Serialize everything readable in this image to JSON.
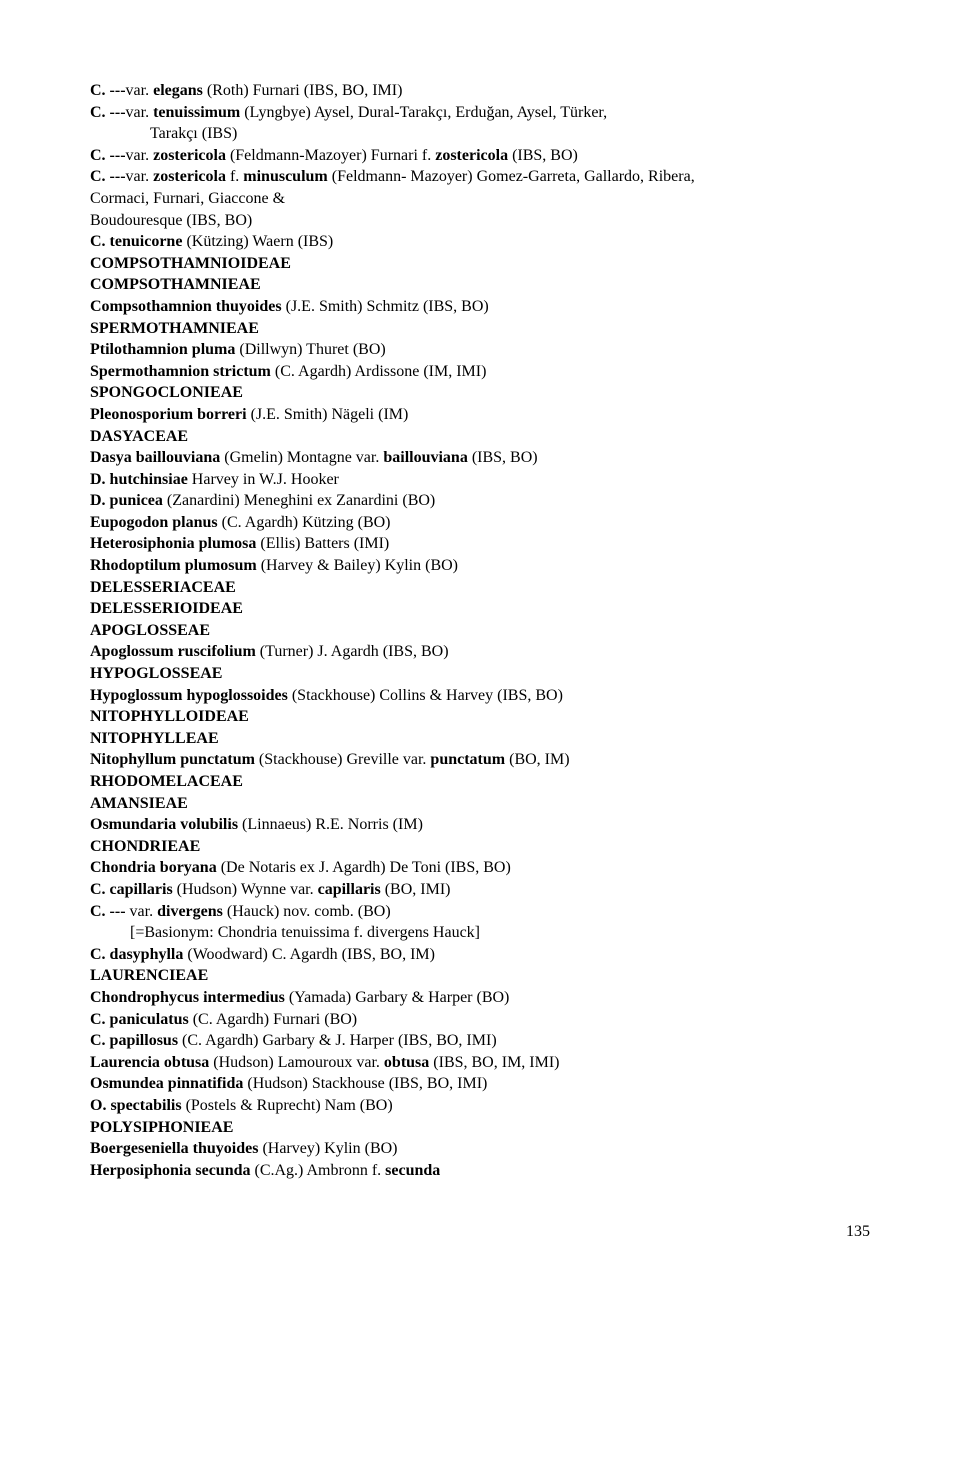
{
  "lines": [
    {
      "segments": [
        {
          "text": "C. ---",
          "bold": true
        },
        {
          "text": "var. ",
          "bold": false
        },
        {
          "text": "elegans ",
          "bold": true
        },
        {
          "text": "(Roth) Furnari (IBS, BO, IMI)",
          "bold": false
        }
      ],
      "indent": 0
    },
    {
      "segments": [
        {
          "text": "C. ---",
          "bold": true
        },
        {
          "text": "var. ",
          "bold": false
        },
        {
          "text": "tenuissimum ",
          "bold": true
        },
        {
          "text": "(Lyngbye) Aysel, Dural-Tarakçı, Erduğan, Aysel, Türker,",
          "bold": false
        }
      ],
      "indent": 0
    },
    {
      "segments": [
        {
          "text": "Tarakçı (IBS)",
          "bold": false
        }
      ],
      "indent": 1
    },
    {
      "segments": [
        {
          "text": "C. ---",
          "bold": true
        },
        {
          "text": "var. ",
          "bold": false
        },
        {
          "text": "zostericola ",
          "bold": true
        },
        {
          "text": "(Feldmann-Mazoyer) Furnari f. ",
          "bold": false
        },
        {
          "text": "zostericola ",
          "bold": true
        },
        {
          "text": "(IBS, BO)",
          "bold": false
        }
      ],
      "indent": 0
    },
    {
      "segments": [
        {
          "text": "C. ---",
          "bold": true
        },
        {
          "text": "var. ",
          "bold": false
        },
        {
          "text": "zostericola ",
          "bold": true
        },
        {
          "text": "f. ",
          "bold": false
        },
        {
          "text": "minusculum ",
          "bold": true
        },
        {
          "text": "(Feldmann- Mazoyer) Gomez-Garreta, Gallardo, Ribera,",
          "bold": false
        }
      ],
      "indent": 0
    },
    {
      "segments": [
        {
          "text": "Cormaci, Furnari, Giaccone &",
          "bold": false
        }
      ],
      "indent": 0
    },
    {
      "segments": [
        {
          "text": "Boudouresque (IBS, BO)",
          "bold": false
        }
      ],
      "indent": 0
    },
    {
      "segments": [
        {
          "text": "C. tenuicorne ",
          "bold": true
        },
        {
          "text": "(Kützing) Waern (IBS)",
          "bold": false
        }
      ],
      "indent": 0
    },
    {
      "segments": [
        {
          "text": "COMPSOTHAMNIOIDEAE",
          "bold": true
        }
      ],
      "indent": 0
    },
    {
      "segments": [
        {
          "text": "COMPSOTHAMNIEAE",
          "bold": true
        }
      ],
      "indent": 0
    },
    {
      "segments": [
        {
          "text": "Compsothamnion thuyoides ",
          "bold": true
        },
        {
          "text": "(J.E. Smith) Schmitz (IBS, BO)",
          "bold": false
        }
      ],
      "indent": 0
    },
    {
      "segments": [
        {
          "text": "SPERMOTHAMNIEAE",
          "bold": true
        }
      ],
      "indent": 0
    },
    {
      "segments": [
        {
          "text": "Ptilothamnion pluma ",
          "bold": true
        },
        {
          "text": "(Dillwyn) Thuret (BO)",
          "bold": false
        }
      ],
      "indent": 0
    },
    {
      "segments": [
        {
          "text": "Spermothamnion strictum ",
          "bold": true
        },
        {
          "text": "(C. Agardh) Ardissone (IM, IMI)",
          "bold": false
        }
      ],
      "indent": 0
    },
    {
      "segments": [
        {
          "text": "SPONGOCLONIEAE",
          "bold": true
        }
      ],
      "indent": 0
    },
    {
      "segments": [
        {
          "text": "Pleonosporium borreri ",
          "bold": true
        },
        {
          "text": "(J.E. Smith) Nägeli (IM)",
          "bold": false
        }
      ],
      "indent": 0
    },
    {
      "segments": [
        {
          "text": "DASYACEAE",
          "bold": true
        }
      ],
      "indent": 0
    },
    {
      "segments": [
        {
          "text": "Dasya baillouviana ",
          "bold": true
        },
        {
          "text": "(Gmelin) Montagne var. ",
          "bold": false
        },
        {
          "text": "baillouviana ",
          "bold": true
        },
        {
          "text": "(IBS, BO)",
          "bold": false
        }
      ],
      "indent": 0
    },
    {
      "segments": [
        {
          "text": "D. hutchinsiae ",
          "bold": true
        },
        {
          "text": " Harvey in W.J. Hooker",
          "bold": false
        }
      ],
      "indent": 0
    },
    {
      "segments": [
        {
          "text": "D. punicea ",
          "bold": true
        },
        {
          "text": "(Zanardini) Meneghini ex Zanardini (BO)",
          "bold": false
        }
      ],
      "indent": 0
    },
    {
      "segments": [
        {
          "text": "Eupogodon planus ",
          "bold": true
        },
        {
          "text": "(C. Agardh) Kützing (BO)",
          "bold": false
        }
      ],
      "indent": 0
    },
    {
      "segments": [
        {
          "text": "Heterosiphonia plumosa ",
          "bold": true
        },
        {
          "text": " (Ellis) Batters (IMI)",
          "bold": false
        }
      ],
      "indent": 0
    },
    {
      "segments": [
        {
          "text": "Rhodoptilum plumosum ",
          "bold": true
        },
        {
          "text": "(Harvey & Bailey) Kylin (BO)",
          "bold": false
        }
      ],
      "indent": 0
    },
    {
      "segments": [
        {
          "text": "DELESSERIACEAE",
          "bold": true
        }
      ],
      "indent": 0
    },
    {
      "segments": [
        {
          "text": "DELESSERIOIDEAE",
          "bold": true
        }
      ],
      "indent": 0
    },
    {
      "segments": [
        {
          "text": "APOGLOSSEAE",
          "bold": true
        }
      ],
      "indent": 0
    },
    {
      "segments": [
        {
          "text": "Apoglossum ruscifolium ",
          "bold": true
        },
        {
          "text": "(Turner) J. Agardh (IBS, BO)",
          "bold": false
        }
      ],
      "indent": 0
    },
    {
      "segments": [
        {
          "text": "HYPOGLOSSEAE",
          "bold": true
        }
      ],
      "indent": 0
    },
    {
      "segments": [
        {
          "text": "Hypoglossum hypoglossoides ",
          "bold": true
        },
        {
          "text": "(Stackhouse) Collins & Harvey (IBS, BO)",
          "bold": false
        }
      ],
      "indent": 0
    },
    {
      "segments": [
        {
          "text": "NITOPHYLLOIDEAE",
          "bold": true
        }
      ],
      "indent": 0
    },
    {
      "segments": [
        {
          "text": "NITOPHYLLEAE",
          "bold": true
        }
      ],
      "indent": 0
    },
    {
      "segments": [
        {
          "text": "Nitophyllum punctatum ",
          "bold": true
        },
        {
          "text": "(Stackhouse) Greville var. ",
          "bold": false
        },
        {
          "text": "punctatum ",
          "bold": true
        },
        {
          "text": "(BO, IM)",
          "bold": false
        }
      ],
      "indent": 0
    },
    {
      "segments": [
        {
          "text": "RHODOMELACEAE",
          "bold": true
        }
      ],
      "indent": 0
    },
    {
      "segments": [
        {
          "text": "AMANSIEAE",
          "bold": true
        }
      ],
      "indent": 0
    },
    {
      "segments": [
        {
          "text": "Osmundaria volubilis ",
          "bold": true
        },
        {
          "text": "(Linnaeus) R.E. Norris (IM)",
          "bold": false
        }
      ],
      "indent": 0
    },
    {
      "segments": [
        {
          "text": "CHONDRIEAE",
          "bold": true
        }
      ],
      "indent": 0
    },
    {
      "segments": [
        {
          "text": "Chondria boryana ",
          "bold": true
        },
        {
          "text": " (De Notaris ex J. Agardh) De Toni (IBS, BO)",
          "bold": false
        }
      ],
      "indent": 0
    },
    {
      "segments": [
        {
          "text": "C. capillaris ",
          "bold": true
        },
        {
          "text": "(Hudson) Wynne var. ",
          "bold": false
        },
        {
          "text": "capillaris ",
          "bold": true
        },
        {
          "text": "(BO, IMI)",
          "bold": false
        }
      ],
      "indent": 0
    },
    {
      "segments": [
        {
          "text": "C. --- ",
          "bold": true
        },
        {
          "text": "var. ",
          "bold": false
        },
        {
          "text": "divergens ",
          "bold": true
        },
        {
          "text": "(Hauck) nov. comb. (BO)",
          "bold": false
        }
      ],
      "indent": 0
    },
    {
      "segments": [
        {
          "text": "[=Basionym: Chondria tenuissima f. divergens Hauck]",
          "bold": false
        }
      ],
      "indent": 2
    },
    {
      "segments": [
        {
          "text": "C. dasyphylla ",
          "bold": true
        },
        {
          "text": "(Woodward) C. Agardh (IBS, BO, IM)",
          "bold": false
        }
      ],
      "indent": 0
    },
    {
      "segments": [
        {
          "text": "LAURENCIEAE",
          "bold": true
        }
      ],
      "indent": 0
    },
    {
      "segments": [
        {
          "text": "Chondrophycus intermedius ",
          "bold": true
        },
        {
          "text": "(Yamada) Garbary & Harper (BO)",
          "bold": false
        }
      ],
      "indent": 0
    },
    {
      "segments": [
        {
          "text": "C. paniculatus ",
          "bold": true
        },
        {
          "text": "(C. Agardh) Furnari (BO)",
          "bold": false
        }
      ],
      "indent": 0
    },
    {
      "segments": [
        {
          "text": "C. papillosus ",
          "bold": true
        },
        {
          "text": "(C. Agardh) Garbary & J. Harper (IBS, BO, IMI)",
          "bold": false
        }
      ],
      "indent": 0
    },
    {
      "segments": [
        {
          "text": "Laurencia obtusa ",
          "bold": true
        },
        {
          "text": "(Hudson) Lamouroux var. ",
          "bold": false
        },
        {
          "text": "obtusa ",
          "bold": true
        },
        {
          "text": "(IBS, BO, IM, IMI)",
          "bold": false
        }
      ],
      "indent": 0
    },
    {
      "segments": [
        {
          "text": "Osmundea pinnatifida ",
          "bold": true
        },
        {
          "text": "(Hudson) Stackhouse (IBS, BO, IMI)",
          "bold": false
        }
      ],
      "indent": 0
    },
    {
      "segments": [
        {
          "text": "O. spectabilis ",
          "bold": true
        },
        {
          "text": "(Postels & Ruprecht) Nam (BO)",
          "bold": false
        }
      ],
      "indent": 0
    },
    {
      "segments": [
        {
          "text": "POLYSIPHONIEAE",
          "bold": true
        }
      ],
      "indent": 0
    },
    {
      "segments": [
        {
          "text": "Boergeseniella thuyoides ",
          "bold": true
        },
        {
          "text": "(Harvey) Kylin (BO)",
          "bold": false
        }
      ],
      "indent": 0
    },
    {
      "segments": [
        {
          "text": "Herposiphonia secunda ",
          "bold": true
        },
        {
          "text": "(C.Ag.) Ambronn f. ",
          "bold": false
        },
        {
          "text": "secunda",
          "bold": true
        }
      ],
      "indent": 0
    }
  ],
  "pageNumber": "135"
}
